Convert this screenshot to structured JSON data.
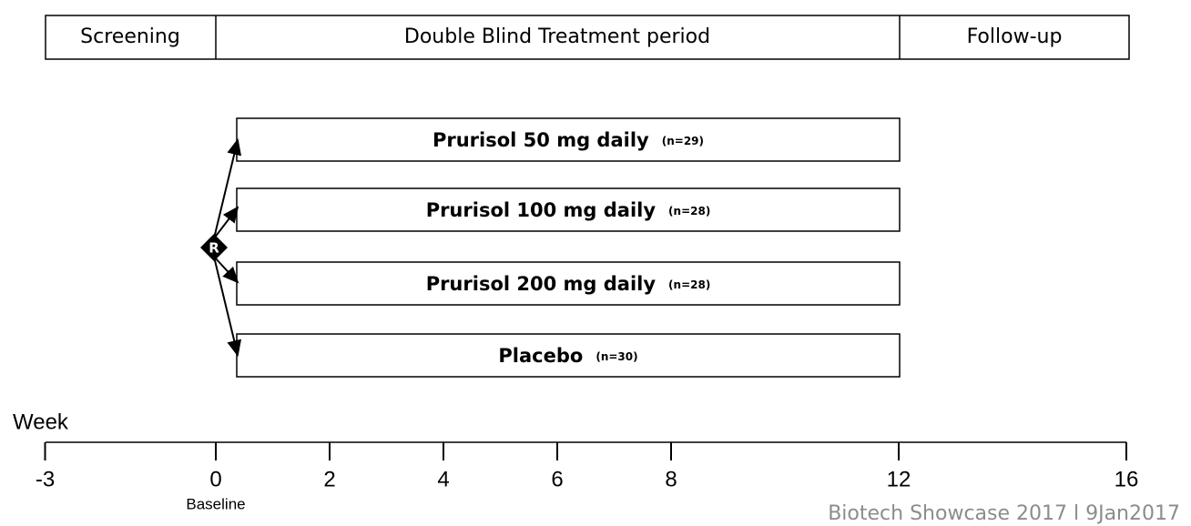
{
  "phases": [
    "Screening",
    "Double Blind Treatment period",
    "Follow-up"
  ],
  "arms": [
    {
      "label": "Prurisol 50 mg daily",
      "n": "(n=29)"
    },
    {
      "label": "Prurisol 100 mg daily",
      "n": "(n=28)"
    },
    {
      "label": "Prurisol 200 mg daily",
      "n": "(n=28)"
    },
    {
      "label": "Placebo",
      "n": "(n=30)"
    }
  ],
  "randomization": "R",
  "axis": {
    "label": "Week",
    "ticks": [
      -3,
      0,
      2,
      4,
      6,
      8,
      12,
      16
    ],
    "baseline": "Baseline"
  },
  "footer": "Biotech Showcase 2017 l 9Jan2017"
}
